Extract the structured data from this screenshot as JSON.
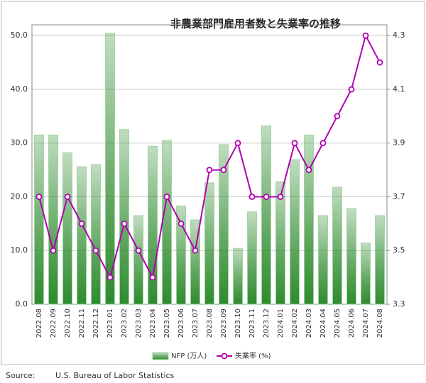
{
  "chart_data": {
    "type": "bar_line",
    "title": "非農業部門雇用者数と失業率の推移",
    "categories": [
      "2022.08",
      "2022.09",
      "2022.10",
      "2022.11",
      "2022.12",
      "2023.01",
      "2023.02",
      "2023.03",
      "2023.04",
      "2023.05",
      "2023.06",
      "2023.07",
      "2023.08",
      "2023.09",
      "2023.10",
      "2023.11",
      "2023.12",
      "2024.01",
      "2024.02",
      "2024.03",
      "2024.04",
      "2024.05",
      "2024.06",
      "2024.07",
      "2024.08"
    ],
    "series": [
      {
        "name": "NFP (万人)",
        "type": "bar",
        "color": "#2e8b2e",
        "values": [
          31.5,
          31.5,
          28.2,
          25.6,
          26.0,
          50.4,
          32.5,
          16.5,
          29.4,
          30.5,
          18.3,
          15.7,
          22.6,
          29.7,
          10.4,
          17.2,
          33.2,
          22.8,
          26.9,
          31.5,
          16.5,
          21.8,
          17.8,
          11.4,
          16.5
        ]
      },
      {
        "name": "失業率 (%)",
        "type": "line",
        "axis": "y2",
        "color": "#b000b0",
        "values": [
          3.7,
          3.5,
          3.7,
          3.6,
          3.5,
          3.4,
          3.6,
          3.5,
          3.4,
          3.7,
          3.6,
          3.5,
          3.8,
          3.8,
          3.9,
          3.7,
          3.7,
          3.7,
          3.9,
          3.8,
          3.9,
          4.0,
          4.1,
          4.3,
          4.2
        ]
      }
    ],
    "ylim": [
      0,
      52
    ],
    "yticks": [
      {
        "value": 0,
        "label": "0.0"
      },
      {
        "value": 10,
        "label": "10.0"
      },
      {
        "value": 20,
        "label": "20.0"
      },
      {
        "value": 30,
        "label": "30.0"
      },
      {
        "value": 40,
        "label": "40.0"
      },
      {
        "value": 50,
        "label": "50.0"
      }
    ],
    "y2lim": [
      3.3,
      4.34
    ],
    "y2ticks": [
      3.3,
      3.5,
      3.7,
      3.9,
      4.1,
      4.3
    ],
    "grid": true,
    "legend": "bottom"
  },
  "source": {
    "label": "Source:",
    "text": "U.S. Bureau of Labor Statistics"
  }
}
